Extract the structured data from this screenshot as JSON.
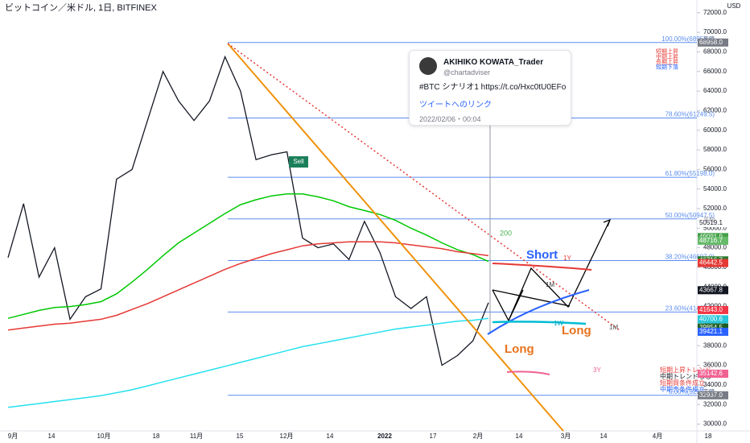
{
  "header": {
    "title": "ビットコイン／米ドル, 1日, BITFINEX",
    "currency": "USD"
  },
  "tweet": {
    "author": "AKIHIKO KOWATA_Trader",
    "handle": "@chartadviser",
    "text": "#BTC シナリオ1 https://t.co/Hxc0tU0EFo",
    "link": "ツイートへのリンク",
    "time": "2022/02/06・00:04"
  },
  "annotations": {
    "short": "Short",
    "long1": "Long",
    "long2": "Long",
    "ma": "200",
    "sell": "Sell",
    "tf1": "1W",
    "tf2": "1M",
    "tf3": "3Y",
    "tf4": "1Y",
    "tf5": "1M",
    "top_legend": [
      "短期上昇",
      "中期上昇",
      "長期上昇",
      "短期下落"
    ],
    "bottom_legend": [
      "短期上昇トレンド",
      "中期トレンドなし",
      "短期買条件成立",
      "中期売条件成立"
    ]
  },
  "chart_data": {
    "type": "line",
    "x_labels": [
      "9月",
      "14",
      "10月",
      "18",
      "11月",
      "15",
      "12月",
      "14",
      "2022",
      "17",
      "2月",
      "14",
      "3月",
      "14",
      "4月",
      "18"
    ],
    "ylim": [
      29300,
      73300
    ],
    "yticks": [
      {
        "value": 30000,
        "label": "30000.0"
      },
      {
        "value": 32000,
        "label": "32000.0"
      },
      {
        "value": 34000,
        "label": "34000.0"
      },
      {
        "value": 36000,
        "label": "36000.0"
      },
      {
        "value": 38000,
        "label": "38000.0"
      },
      {
        "value": 40000,
        "label": "40000.0"
      },
      {
        "value": 42000,
        "label": "42000.0"
      },
      {
        "value": 44000,
        "label": "44000.0"
      },
      {
        "value": 46000,
        "label": "46000.0"
      },
      {
        "value": 48000,
        "label": "48000.0"
      },
      {
        "value": 50000,
        "label": "50000.0"
      },
      {
        "value": 52000,
        "label": "52000.0"
      },
      {
        "value": 54000,
        "label": "54000.0"
      },
      {
        "value": 56000,
        "label": "56000.0"
      },
      {
        "value": 58000,
        "label": "58000.0"
      },
      {
        "value": 60000,
        "label": "60000.0"
      },
      {
        "value": 62000,
        "label": "62000.0"
      },
      {
        "value": 64000,
        "label": "64000.0"
      },
      {
        "value": 66000,
        "label": "66000.0"
      },
      {
        "value": 68000,
        "label": "68000.0"
      },
      {
        "value": 70000,
        "label": "70000.0"
      },
      {
        "value": 72000,
        "label": "72000.0"
      }
    ],
    "fib": [
      {
        "value": 68958,
        "label": "100.00%(68958.0)"
      },
      {
        "value": 61249.5,
        "label": "78.60%(61249.5)"
      },
      {
        "value": 55198,
        "label": "61.80%(55198.0)"
      },
      {
        "value": 50947.5,
        "label": "50.00%(50947.5)"
      },
      {
        "value": 46697,
        "label": "38.20%(46697.0)"
      },
      {
        "value": 41438,
        "label": "23.60%(41438.0)"
      },
      {
        "value": 32937,
        "label": "0.00%(32937.0)"
      }
    ],
    "price_tags": [
      {
        "value": 68958,
        "label": "68958.0",
        "color": "#787b86",
        "note": "高値"
      },
      {
        "value": 50519.1,
        "label": "50519.1",
        "color": "#ffffff",
        "note": "平均"
      },
      {
        "value": 49091.9,
        "label": "49091.9",
        "color": "#43a047"
      },
      {
        "value": 48716.7,
        "label": "48716.7",
        "color": "#66bb6a"
      },
      {
        "value": 46716.7,
        "label": "46716.7",
        "color": "#2e7d32"
      },
      {
        "value": 46442.5,
        "label": "46442.5",
        "color": "#e53935"
      },
      {
        "value": 43667.8,
        "label": "43667.8",
        "color": "#131722"
      },
      {
        "value": 41643,
        "label": "41643.0",
        "color": "#f23645"
      },
      {
        "value": 40700.6,
        "label": "40700.6",
        "color": "#26c6da"
      },
      {
        "value": 39854.5,
        "label": "39854.5",
        "color": "#1b5e20"
      },
      {
        "value": 39421.1,
        "label": "39421.1",
        "color": "#2962ff"
      },
      {
        "value": 35142.6,
        "label": "35142.6",
        "color": "#f06292"
      },
      {
        "value": 32937,
        "label": "32937.0",
        "color": "#787b86",
        "note": "安値"
      }
    ],
    "series": [
      {
        "color": "#131722",
        "values": [
          47000,
          52500,
          45000,
          48000,
          40700,
          43000,
          43800,
          55000,
          56000,
          61000,
          66000,
          63000,
          61000,
          63000,
          67500,
          64000,
          57000,
          57500,
          57800,
          49000,
          48000,
          48400,
          46800,
          50700,
          47500,
          43000,
          41800,
          43000,
          36000,
          37000,
          38500,
          42400
        ]
      },
      {
        "color": "#00c800",
        "values": [
          40800,
          41200,
          41600,
          41900,
          42000,
          42200,
          42500,
          43300,
          44500,
          45800,
          47200,
          48500,
          49500,
          50500,
          51500,
          52400,
          52900,
          53300,
          53500,
          53500,
          53200,
          52800,
          52200,
          51800,
          51400,
          50800,
          50000,
          49300,
          48500,
          47800,
          47300,
          46600
        ]
      },
      {
        "color": "#e53935",
        "values": [
          39600,
          39800,
          40000,
          40200,
          40300,
          40500,
          40700,
          41100,
          41700,
          42300,
          43000,
          43700,
          44400,
          45100,
          45800,
          46400,
          46900,
          47400,
          47800,
          48200,
          48400,
          48500,
          48600,
          48600,
          48600,
          48500,
          48300,
          48100,
          47900,
          47600,
          47400,
          47200
        ]
      },
      {
        "color": "#26e0f0",
        "values": [
          31700,
          31900,
          32100,
          32300,
          32500,
          32700,
          32900,
          33200,
          33500,
          33900,
          34300,
          34700,
          35100,
          35500,
          35900,
          36300,
          36700,
          37100,
          37500,
          37900,
          38200,
          38500,
          38800,
          39100,
          39400,
          39700,
          39900,
          40100,
          40300,
          40500,
          40600,
          40800
        ]
      }
    ]
  }
}
